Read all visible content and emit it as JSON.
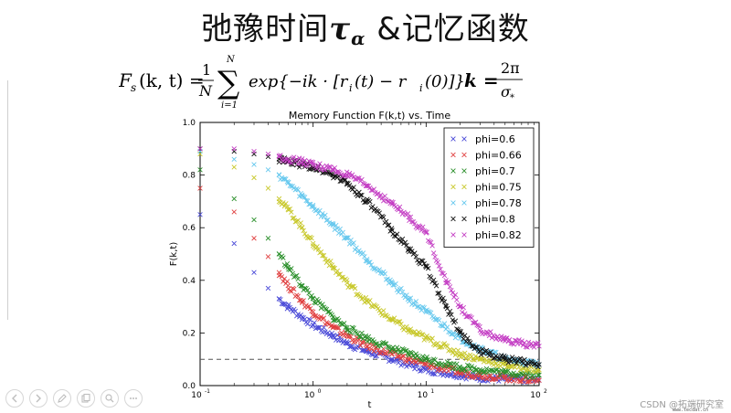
{
  "slide": {
    "title_text": "弛豫时间",
    "title_symbol": "τ",
    "title_subscript": "α",
    "title_suffix": " &记忆函数",
    "formula_lhs": "F",
    "formula_lhs_sub": "s",
    "formula_lhs_args": "(k, t) =",
    "formula_frac_num": "1",
    "formula_frac_den": "N",
    "formula_sum_top": "N",
    "formula_sum_bottom": "i=1",
    "formula_body": "exp{−ik · [r",
    "formula_body_mid": "(t) − r",
    "formula_body_end": "(0)]}",
    "formula_sub_i": "i",
    "formula_k": "k =",
    "formula_k_num": "2π",
    "formula_k_den": "σ",
    "formula_k_den_sub": "*",
    "watermark": "CSDN @拓端研究室",
    "tiny_url": "www.tecdat.cn"
  },
  "toolbar": {
    "buttons": [
      "prev-icon",
      "next-icon",
      "pen-icon",
      "copy-icon",
      "zoom-icon",
      "more-icon"
    ]
  },
  "chart_data": {
    "type": "scatter",
    "title": "Memory Function F(k,t) vs. Time",
    "xlabel": "t",
    "ylabel": "F(k,t)",
    "xscale": "log",
    "xlim": [
      0.1,
      100
    ],
    "ylim": [
      0.0,
      1.0
    ],
    "xticks": [
      {
        "value": 0.1,
        "label": "10",
        "exp": "-1"
      },
      {
        "value": 1,
        "label": "10",
        "exp": "0"
      },
      {
        "value": 10,
        "label": "10",
        "exp": "1"
      },
      {
        "value": 100,
        "label": "10",
        "exp": "2"
      }
    ],
    "yticks": [
      "0.0",
      "0.2",
      "0.4",
      "0.6",
      "0.8",
      "1.0"
    ],
    "grid": false,
    "legend_position": "top-right",
    "marker": "x",
    "reference_line": {
      "y": 0.1,
      "style": "dashed",
      "color": "#555555"
    },
    "series": [
      {
        "name": "phi=0.6",
        "color": "#4a4ad8",
        "x": [
          0.1,
          0.2,
          0.3,
          0.4,
          0.5,
          0.6,
          0.8,
          1.0,
          1.5,
          2,
          3,
          5,
          7,
          10,
          20,
          30,
          50,
          100
        ],
        "y": [
          0.65,
          0.54,
          0.43,
          0.37,
          0.33,
          0.3,
          0.26,
          0.23,
          0.19,
          0.16,
          0.13,
          0.1,
          0.08,
          0.06,
          0.04,
          0.03,
          0.025,
          0.02
        ]
      },
      {
        "name": "phi=0.66",
        "color": "#e04040",
        "x": [
          0.1,
          0.2,
          0.3,
          0.4,
          0.5,
          0.6,
          0.8,
          1.0,
          1.5,
          2,
          3,
          5,
          7,
          10,
          20,
          30,
          50,
          100
        ],
        "y": [
          0.75,
          0.66,
          0.56,
          0.49,
          0.43,
          0.38,
          0.32,
          0.28,
          0.22,
          0.19,
          0.15,
          0.12,
          0.1,
          0.08,
          0.05,
          0.04,
          0.03,
          0.02
        ]
      },
      {
        "name": "phi=0.7",
        "color": "#2a8f2a",
        "x": [
          0.1,
          0.2,
          0.3,
          0.4,
          0.5,
          0.6,
          0.8,
          1.0,
          1.5,
          2,
          3,
          5,
          7,
          10,
          20,
          30,
          50,
          100
        ],
        "y": [
          0.82,
          0.71,
          0.63,
          0.56,
          0.5,
          0.45,
          0.38,
          0.33,
          0.26,
          0.22,
          0.18,
          0.14,
          0.12,
          0.1,
          0.07,
          0.06,
          0.05,
          0.04
        ]
      },
      {
        "name": "phi=0.75",
        "color": "#c8c82a",
        "x": [
          0.1,
          0.2,
          0.3,
          0.4,
          0.5,
          0.6,
          0.8,
          1.0,
          1.5,
          2,
          3,
          5,
          7,
          10,
          20,
          30,
          50,
          100
        ],
        "y": [
          0.88,
          0.83,
          0.79,
          0.75,
          0.71,
          0.67,
          0.6,
          0.54,
          0.45,
          0.39,
          0.32,
          0.25,
          0.21,
          0.18,
          0.12,
          0.1,
          0.08,
          0.06
        ]
      },
      {
        "name": "phi=0.78",
        "color": "#66c8ee",
        "x": [
          0.1,
          0.2,
          0.3,
          0.4,
          0.5,
          0.6,
          0.8,
          1.0,
          1.5,
          2,
          3,
          5,
          7,
          10,
          20,
          30,
          50,
          100
        ],
        "y": [
          0.89,
          0.86,
          0.84,
          0.82,
          0.8,
          0.77,
          0.72,
          0.68,
          0.61,
          0.56,
          0.48,
          0.39,
          0.33,
          0.28,
          0.18,
          0.14,
          0.1,
          0.08
        ]
      },
      {
        "name": "phi=0.8",
        "color": "#111111",
        "x": [
          0.1,
          0.2,
          0.3,
          0.4,
          0.5,
          0.6,
          0.8,
          1.0,
          1.5,
          2,
          3,
          5,
          7,
          10,
          15,
          20,
          30,
          50,
          100
        ],
        "y": [
          0.9,
          0.89,
          0.88,
          0.87,
          0.86,
          0.85,
          0.84,
          0.83,
          0.8,
          0.77,
          0.7,
          0.59,
          0.52,
          0.45,
          0.3,
          0.2,
          0.13,
          0.1,
          0.08
        ]
      },
      {
        "name": "phi=0.82",
        "color": "#c43ec4",
        "x": [
          0.1,
          0.2,
          0.3,
          0.4,
          0.5,
          0.6,
          0.8,
          1.0,
          1.5,
          2,
          3,
          5,
          7,
          10,
          15,
          20,
          30,
          50,
          100
        ],
        "y": [
          0.9,
          0.9,
          0.89,
          0.88,
          0.87,
          0.86,
          0.85,
          0.84,
          0.82,
          0.8,
          0.76,
          0.69,
          0.64,
          0.58,
          0.4,
          0.3,
          0.21,
          0.17,
          0.15
        ]
      }
    ]
  }
}
